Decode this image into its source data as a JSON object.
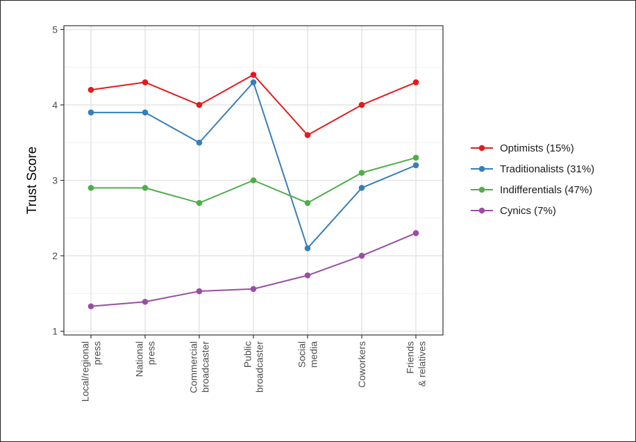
{
  "chart_data": {
    "type": "line",
    "title": "",
    "xlabel": "",
    "ylabel": "Trust Score",
    "ylim": [
      0.95,
      5.05
    ],
    "yticks": [
      1,
      2,
      3,
      4,
      5
    ],
    "grid": true,
    "legend_position": "right",
    "categories": [
      [
        "Local/regional",
        "press"
      ],
      [
        "National",
        "press"
      ],
      [
        "Commercial",
        "broadcaster"
      ],
      [
        "Public",
        "broadcaster"
      ],
      [
        "Social",
        "media"
      ],
      [
        "Coworkers"
      ],
      [
        "Friends",
        "& relatives"
      ]
    ],
    "series": [
      {
        "name": "Optimists (15%)",
        "color": "#e41a1c",
        "values": [
          4.2,
          4.3,
          4.0,
          4.4,
          3.6,
          4.0,
          4.3
        ]
      },
      {
        "name": "Traditionalists (31%)",
        "color": "#377eb8",
        "values": [
          3.9,
          3.9,
          3.5,
          4.3,
          2.1,
          2.9,
          3.2
        ]
      },
      {
        "name": "Indifferentials (47%)",
        "color": "#4daf4a",
        "values": [
          2.9,
          2.9,
          2.7,
          3.0,
          2.7,
          3.1,
          3.3
        ]
      },
      {
        "name": "Cynics (7%)",
        "color": "#984ea3",
        "values": [
          1.33,
          1.39,
          1.53,
          1.56,
          1.74,
          2.0,
          2.3
        ]
      }
    ]
  }
}
